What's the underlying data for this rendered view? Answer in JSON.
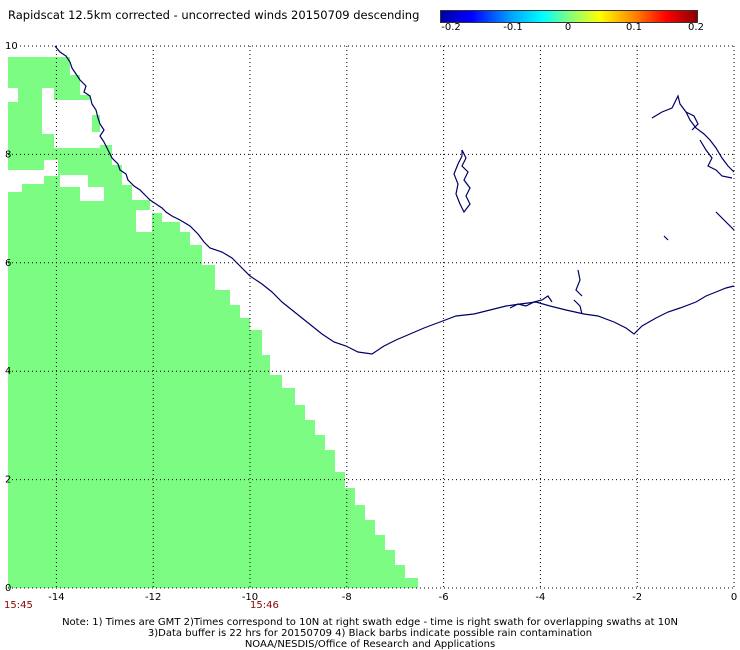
{
  "title": "Rapidscat 12.5km corrected - uncorrected winds 20150709 descending",
  "colorbar": {
    "ticks": [
      "-0.2",
      "-0.1",
      "0",
      "0.1",
      "0.2"
    ],
    "tick_values": [
      -0.2,
      -0.1,
      0,
      0.1,
      0.2
    ]
  },
  "axes": {
    "x_ticks": [
      "-14",
      "-12",
      "-10",
      "-8",
      "-6",
      "-4",
      "-2",
      "0"
    ],
    "x_values": [
      -14,
      -12,
      -10,
      -8,
      -6,
      -4,
      -2,
      0
    ],
    "y_ticks": [
      "0",
      "2",
      "4",
      "6",
      "8",
      "10"
    ],
    "y_values": [
      0,
      2,
      4,
      6,
      8,
      10
    ],
    "xlim": [
      -15,
      0
    ],
    "ylim": [
      0,
      10
    ]
  },
  "times": {
    "left": "15:45",
    "middle": "15:46"
  },
  "notes": {
    "line1": "Note: 1) Times are GMT 2)Times correspond to 10N at right swath edge - time is right swath for overlapping swaths at 10N",
    "line2": "3)Data buffer is 22 hrs for 20150709 4) Black barbs indicate possible rain contamination",
    "line3": "NOAA/NESDIS/Office of Research and Applications"
  },
  "colors": {
    "swath": "#7cfc82",
    "coast": "#000066",
    "grid": "#000000"
  }
}
